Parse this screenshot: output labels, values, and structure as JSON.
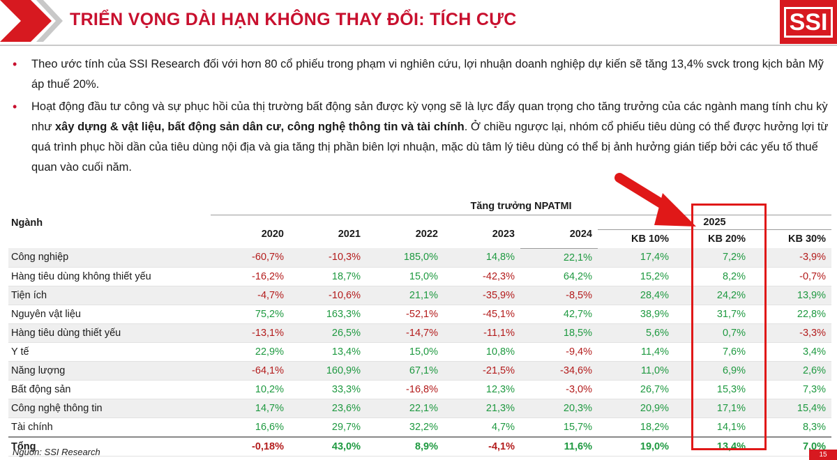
{
  "header": {
    "title": "TRIỂN VỌNG DÀI HẠN KHÔNG THAY ĐỔI: TÍCH CỰC",
    "logo_text": "SSI",
    "brand_color": "#d71920"
  },
  "bullets": {
    "b1": "Theo ước tính của SSI Research đối với hơn 80 cổ phiếu trong phạm vi nghiên cứu, lợi nhuận doanh nghiệp dự kiến sẽ tăng 13,4% svck trong kịch bản Mỹ áp thuế 20%.",
    "b2_part1": "Hoạt động đầu tư công và sự phục hồi của thị trường bất động sản được kỳ vọng sẽ là lực đẩy quan trọng cho tăng trưởng của các ngành mang tính chu kỳ như ",
    "b2_bold": "xây dựng & vật liệu, bất động sản dân cư, công nghệ thông tin và tài chính",
    "b2_part2": ". Ở chiều ngược lại, nhóm cổ phiếu tiêu dùng có thể được hưởng lợi từ quá trình phục hồi dần của tiêu dùng nội địa và gia tăng thị phần biên lợi nhuận, mặc dù tâm lý tiêu dùng có thể bị ảnh hưởng gián tiếp bởi các yếu tố thuế quan vào cuối năm."
  },
  "table": {
    "sector_header": "Ngành",
    "group_header": "Tăng trưởng NPATMI",
    "years": [
      "2020",
      "2021",
      "2022",
      "2023",
      "2024"
    ],
    "forecast_year": "2025",
    "scenarios": [
      "KB 10%",
      "KB 20%",
      "KB 30%"
    ],
    "rows": [
      {
        "name": "Công nghiệp",
        "values": [
          "-60,7%",
          "-10,3%",
          "185,0%",
          "14,8%",
          "22,1%",
          "17,4%",
          "7,2%",
          "-3,9%"
        ]
      },
      {
        "name": "Hàng tiêu dùng không thiết yếu",
        "values": [
          "-16,2%",
          "18,7%",
          "15,0%",
          "-42,3%",
          "64,2%",
          "15,2%",
          "8,2%",
          "-0,7%"
        ]
      },
      {
        "name": "Tiện ích",
        "values": [
          "-4,7%",
          "-10,6%",
          "21,1%",
          "-35,9%",
          "-8,5%",
          "28,4%",
          "24,2%",
          "13,9%"
        ]
      },
      {
        "name": "Nguyên vật liệu",
        "values": [
          "75,2%",
          "163,3%",
          "-52,1%",
          "-45,1%",
          "42,7%",
          "38,9%",
          "31,7%",
          "22,8%"
        ]
      },
      {
        "name": "Hàng tiêu dùng thiết yếu",
        "values": [
          "-13,1%",
          "26,5%",
          "-14,7%",
          "-11,1%",
          "18,5%",
          "5,6%",
          "0,7%",
          "-3,3%"
        ]
      },
      {
        "name": "Y tế",
        "values": [
          "22,9%",
          "13,4%",
          "15,0%",
          "10,8%",
          "-9,4%",
          "11,4%",
          "7,6%",
          "3,4%"
        ]
      },
      {
        "name": "Năng lượng",
        "values": [
          "-64,1%",
          "160,9%",
          "67,1%",
          "-21,5%",
          "-34,6%",
          "11,0%",
          "6,9%",
          "2,6%"
        ]
      },
      {
        "name": "Bất động sản",
        "values": [
          "10,2%",
          "33,3%",
          "-16,8%",
          "12,3%",
          "-3,0%",
          "26,7%",
          "15,3%",
          "7,3%"
        ]
      },
      {
        "name": "Công nghệ thông tin",
        "values": [
          "14,7%",
          "23,6%",
          "22,1%",
          "21,3%",
          "20,3%",
          "20,9%",
          "17,1%",
          "15,4%"
        ]
      },
      {
        "name": "Tài chính",
        "values": [
          "16,6%",
          "29,7%",
          "32,2%",
          "4,7%",
          "15,7%",
          "18,2%",
          "14,1%",
          "8,3%"
        ]
      }
    ],
    "total": {
      "name": "Tổng",
      "values": [
        "-0,18%",
        "43,0%",
        "8,9%",
        "-4,1%",
        "11,6%",
        "19,0%",
        "13,4%",
        "7,0%"
      ]
    }
  },
  "footer": {
    "source": "Nguồn: SSI Research",
    "page": "15"
  },
  "colors": {
    "positive": "#1e9940",
    "negative": "#b31b1b",
    "highlight": "#e01818"
  }
}
